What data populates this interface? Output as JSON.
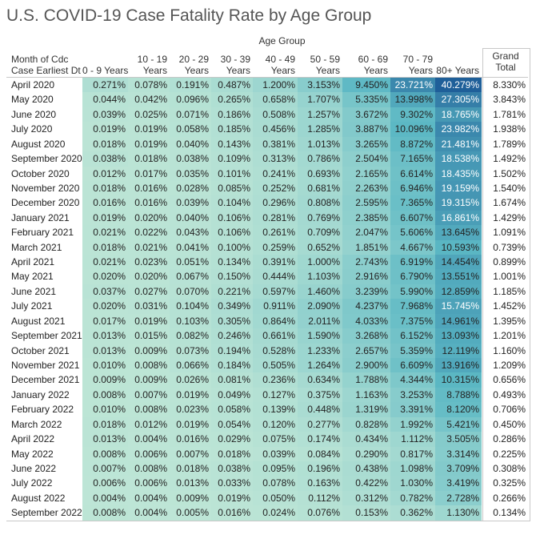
{
  "chart_data": {
    "type": "heatmap",
    "title": "U.S. COVID-19 Case Fatality Rate by Age Group",
    "column_group_label": "Age Group",
    "row_header": [
      "Month of Cdc",
      "Case Earliest Dt"
    ],
    "columns": [
      {
        "label": [
          "0 - 9 Years"
        ]
      },
      {
        "label": [
          "10 - 19",
          "Years"
        ]
      },
      {
        "label": [
          "20 - 29",
          "Years"
        ]
      },
      {
        "label": [
          "30 - 39",
          "Years"
        ]
      },
      {
        "label": [
          "40 - 49",
          "Years"
        ]
      },
      {
        "label": [
          "50 - 59",
          "Years"
        ]
      },
      {
        "label": [
          "60 - 69",
          "Years"
        ]
      },
      {
        "label": [
          "70 - 79",
          "Years"
        ]
      },
      {
        "label": [
          "80+ Years"
        ]
      }
    ],
    "grand_total_label": [
      "Grand",
      "Total"
    ],
    "rows": [
      "April 2020",
      "May 2020",
      "June 2020",
      "July 2020",
      "August 2020",
      "September 2020",
      "October 2020",
      "November 2020",
      "December 2020",
      "January 2021",
      "February 2021",
      "March 2021",
      "April 2021",
      "May 2021",
      "June 2021",
      "July 2021",
      "August 2021",
      "September 2021",
      "October 2021",
      "November 2021",
      "December 2021",
      "January 2022",
      "February 2022",
      "March 2022",
      "April 2022",
      "May 2022",
      "June 2022",
      "July 2022",
      "August 2022",
      "September 2022"
    ],
    "values": [
      [
        "0.271%",
        "0.078%",
        "0.191%",
        "0.487%",
        "1.200%",
        "3.153%",
        "9.450%",
        "23.721%",
        "40.279%"
      ],
      [
        "0.044%",
        "0.042%",
        "0.096%",
        "0.265%",
        "0.658%",
        "1.707%",
        "5.335%",
        "13.998%",
        "27.305%"
      ],
      [
        "0.039%",
        "0.025%",
        "0.071%",
        "0.186%",
        "0.508%",
        "1.257%",
        "3.672%",
        "9.302%",
        "18.765%"
      ],
      [
        "0.019%",
        "0.019%",
        "0.058%",
        "0.185%",
        "0.456%",
        "1.285%",
        "3.887%",
        "10.096%",
        "23.982%"
      ],
      [
        "0.018%",
        "0.019%",
        "0.040%",
        "0.143%",
        "0.381%",
        "1.013%",
        "3.265%",
        "8.872%",
        "21.481%"
      ],
      [
        "0.038%",
        "0.018%",
        "0.038%",
        "0.109%",
        "0.313%",
        "0.786%",
        "2.504%",
        "7.165%",
        "18.538%"
      ],
      [
        "0.012%",
        "0.017%",
        "0.035%",
        "0.101%",
        "0.241%",
        "0.693%",
        "2.165%",
        "6.614%",
        "18.435%"
      ],
      [
        "0.018%",
        "0.016%",
        "0.028%",
        "0.085%",
        "0.252%",
        "0.681%",
        "2.263%",
        "6.946%",
        "19.159%"
      ],
      [
        "0.016%",
        "0.016%",
        "0.039%",
        "0.104%",
        "0.296%",
        "0.808%",
        "2.595%",
        "7.365%",
        "19.315%"
      ],
      [
        "0.019%",
        "0.020%",
        "0.040%",
        "0.106%",
        "0.281%",
        "0.769%",
        "2.385%",
        "6.607%",
        "16.861%"
      ],
      [
        "0.021%",
        "0.022%",
        "0.043%",
        "0.106%",
        "0.261%",
        "0.709%",
        "2.047%",
        "5.606%",
        "13.645%"
      ],
      [
        "0.018%",
        "0.021%",
        "0.041%",
        "0.100%",
        "0.259%",
        "0.652%",
        "1.851%",
        "4.667%",
        "10.593%"
      ],
      [
        "0.021%",
        "0.023%",
        "0.051%",
        "0.134%",
        "0.391%",
        "1.000%",
        "2.743%",
        "6.919%",
        "14.454%"
      ],
      [
        "0.020%",
        "0.020%",
        "0.067%",
        "0.150%",
        "0.444%",
        "1.103%",
        "2.916%",
        "6.790%",
        "13.551%"
      ],
      [
        "0.037%",
        "0.027%",
        "0.070%",
        "0.221%",
        "0.597%",
        "1.460%",
        "3.239%",
        "5.990%",
        "12.859%"
      ],
      [
        "0.020%",
        "0.031%",
        "0.104%",
        "0.349%",
        "0.911%",
        "2.090%",
        "4.237%",
        "7.968%",
        "15.745%"
      ],
      [
        "0.017%",
        "0.019%",
        "0.103%",
        "0.305%",
        "0.864%",
        "2.011%",
        "4.033%",
        "7.375%",
        "14.961%"
      ],
      [
        "0.013%",
        "0.015%",
        "0.082%",
        "0.246%",
        "0.661%",
        "1.590%",
        "3.268%",
        "6.152%",
        "13.093%"
      ],
      [
        "0.013%",
        "0.009%",
        "0.073%",
        "0.194%",
        "0.528%",
        "1.233%",
        "2.657%",
        "5.359%",
        "12.119%"
      ],
      [
        "0.010%",
        "0.008%",
        "0.066%",
        "0.184%",
        "0.505%",
        "1.264%",
        "2.900%",
        "6.609%",
        "13.916%"
      ],
      [
        "0.009%",
        "0.009%",
        "0.026%",
        "0.081%",
        "0.236%",
        "0.634%",
        "1.788%",
        "4.344%",
        "10.315%"
      ],
      [
        "0.008%",
        "0.007%",
        "0.019%",
        "0.049%",
        "0.127%",
        "0.375%",
        "1.163%",
        "3.253%",
        "8.788%"
      ],
      [
        "0.010%",
        "0.008%",
        "0.023%",
        "0.058%",
        "0.139%",
        "0.448%",
        "1.319%",
        "3.391%",
        "8.120%"
      ],
      [
        "0.018%",
        "0.012%",
        "0.019%",
        "0.054%",
        "0.120%",
        "0.277%",
        "0.828%",
        "1.992%",
        "5.421%"
      ],
      [
        "0.013%",
        "0.004%",
        "0.016%",
        "0.029%",
        "0.075%",
        "0.174%",
        "0.434%",
        "1.112%",
        "3.505%"
      ],
      [
        "0.008%",
        "0.006%",
        "0.007%",
        "0.018%",
        "0.039%",
        "0.084%",
        "0.290%",
        "0.817%",
        "3.314%"
      ],
      [
        "0.007%",
        "0.008%",
        "0.018%",
        "0.038%",
        "0.095%",
        "0.196%",
        "0.438%",
        "1.098%",
        "3.709%"
      ],
      [
        "0.006%",
        "0.006%",
        "0.013%",
        "0.033%",
        "0.078%",
        "0.163%",
        "0.422%",
        "1.030%",
        "3.419%"
      ],
      [
        "0.004%",
        "0.004%",
        "0.009%",
        "0.019%",
        "0.050%",
        "0.112%",
        "0.312%",
        "0.782%",
        "2.728%"
      ],
      [
        "0.008%",
        "0.004%",
        "0.005%",
        "0.016%",
        "0.024%",
        "0.076%",
        "0.153%",
        "0.362%",
        "1.130%"
      ]
    ],
    "grand_total": [
      "8.330%",
      "3.843%",
      "1.781%",
      "1.938%",
      "1.789%",
      "1.492%",
      "1.502%",
      "1.540%",
      "1.674%",
      "1.429%",
      "1.091%",
      "0.739%",
      "0.899%",
      "1.001%",
      "1.185%",
      "1.452%",
      "1.395%",
      "1.201%",
      "1.160%",
      "1.209%",
      "0.656%",
      "0.493%",
      "0.706%",
      "0.450%",
      "0.286%",
      "0.225%",
      "0.308%",
      "0.325%",
      "0.266%",
      "0.134%"
    ],
    "color_scale": {
      "low": "#bfe6d6",
      "mid": "#5cb8c4",
      "high": "#1f5f99"
    },
    "grid": true
  }
}
